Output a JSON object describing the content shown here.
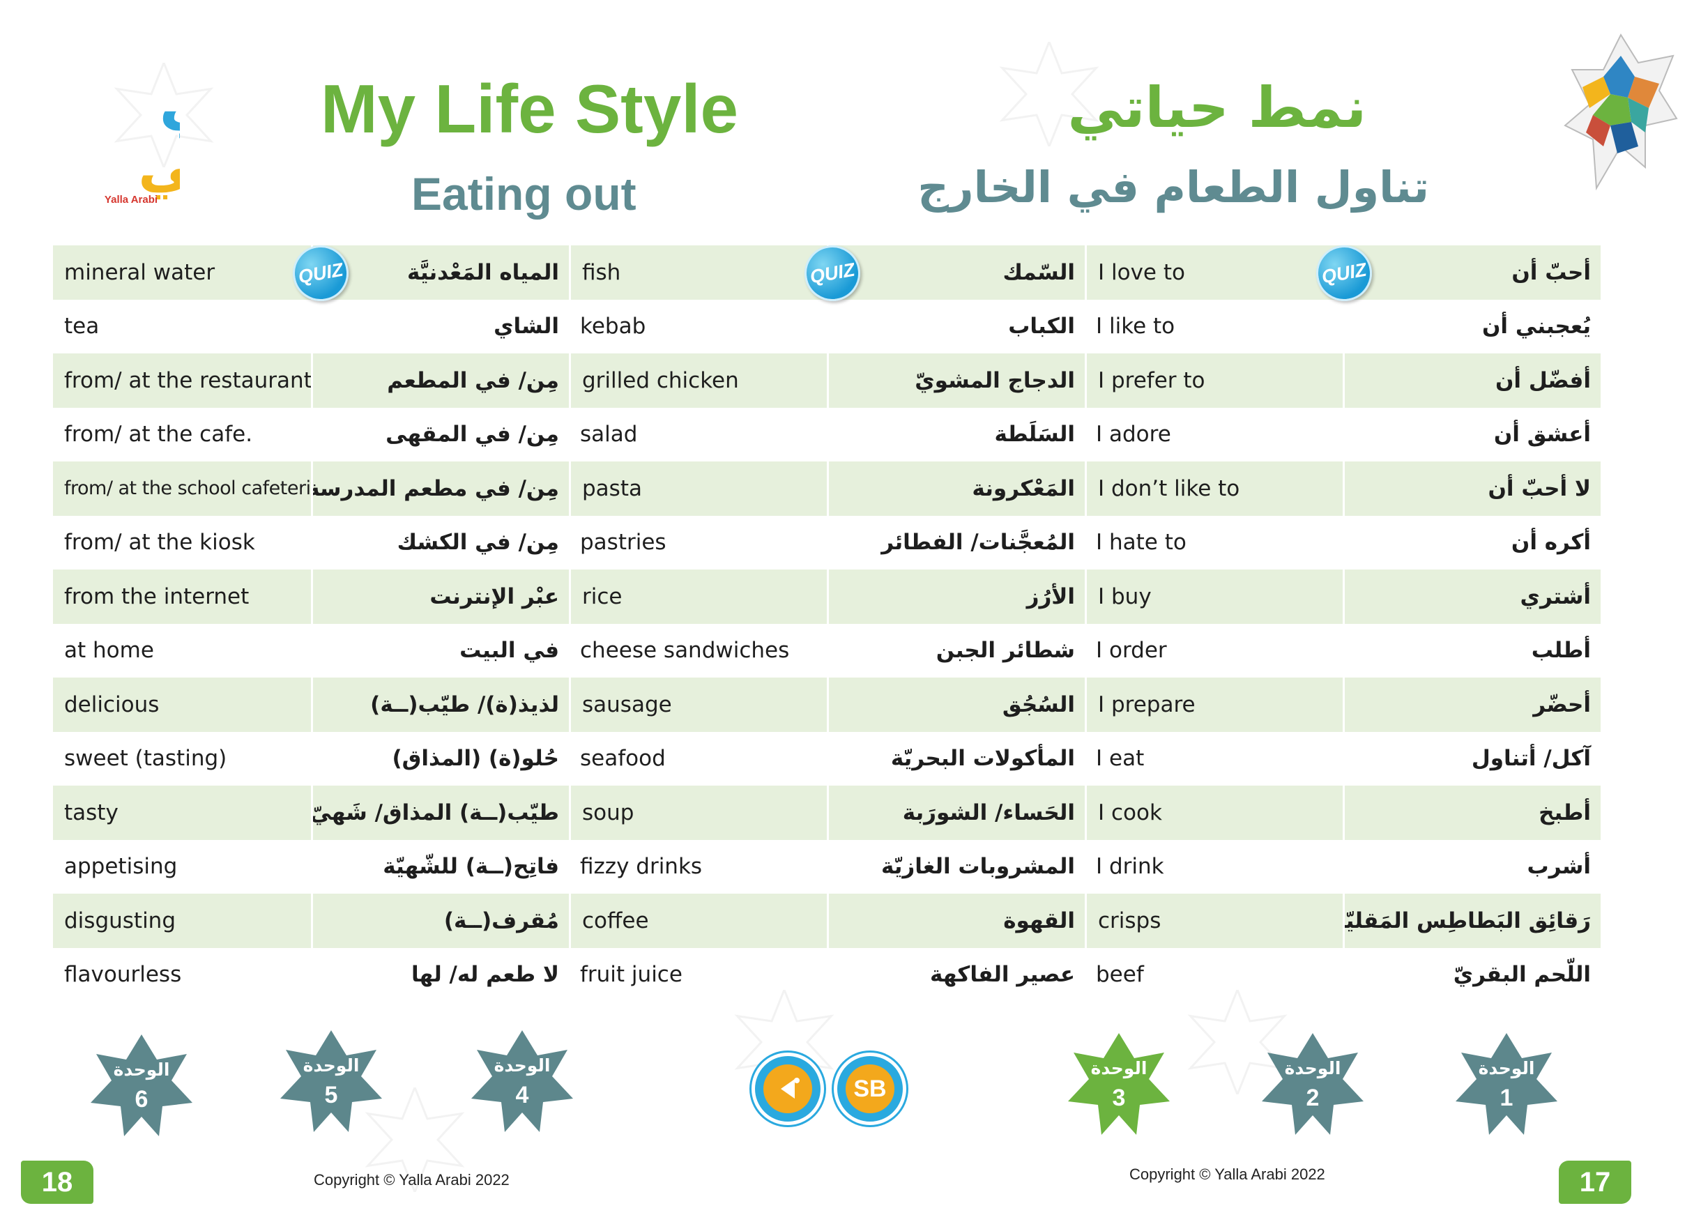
{
  "logo": {
    "name_ar": "يلا عربي",
    "name_en": "Yalla Arabi"
  },
  "title": {
    "en": "My Life Style",
    "ar": "نمط حياتي"
  },
  "subtitle": {
    "en": "Eating out",
    "ar": "تناول الطعام في الخارج"
  },
  "quiz_label": "QUIZ",
  "rows": [
    {
      "en1": "mineral water",
      "ar1": "المياه المَعْدنيَّة",
      "en2": "fish",
      "ar2": "السّمك",
      "en3": "I love to",
      "ar3": "أحبّ أن"
    },
    {
      "en1": "tea",
      "ar1": "الشاي",
      "en2": "kebab",
      "ar2": "الكباب",
      "en3": "I like to",
      "ar3": "يُعجبني أن"
    },
    {
      "en1": "from/ at the restaurant",
      "ar1": "مِن/ في المطعم",
      "en2": "grilled chicken",
      "ar2": "الدجاج المشويّ",
      "en3": "I prefer to",
      "ar3": "أفضّل أن"
    },
    {
      "en1": "from/ at the cafe.",
      "ar1": "مِن/ في المقهى",
      "en2": "salad",
      "ar2": "السَلَطة",
      "en3": "I adore",
      "ar3": "أعشق أن"
    },
    {
      "en1": "from/ at the school cafeteria",
      "ar1": "مِن/ في مطعم المدرسة",
      "en2": "pasta",
      "ar2": "المَعْكرونة",
      "en3": "I don’t like to",
      "ar3": "لا أحبّ أن"
    },
    {
      "en1": "from/ at the kiosk",
      "ar1": "مِن/ في الكشك",
      "en2": "pastries",
      "ar2": "المُعجَّنات/ الفطائر",
      "en3": "I hate to",
      "ar3": "أكره أن"
    },
    {
      "en1": "from the internet",
      "ar1": "عبْر الإنترنت",
      "en2": "rice",
      "ar2": "الأرُز",
      "en3": "I buy",
      "ar3": "أشتري"
    },
    {
      "en1": "at home",
      "ar1": "في البيت",
      "en2": "cheese sandwiches",
      "ar2": "شطائر الجبن",
      "en3": "I order",
      "ar3": "أطلب"
    },
    {
      "en1": "delicious",
      "ar1": "لذيذ(ة)/ طيّب(ــة)",
      "en2": "sausage",
      "ar2": "السُجُق",
      "en3": "I prepare",
      "ar3": "أحضّر"
    },
    {
      "en1": "sweet (tasting)",
      "ar1": "حُلو(ة) (المذاق)",
      "en2": "seafood",
      "ar2": "المأكولات البحريّة",
      "en3": "I eat",
      "ar3": "آكل/ أتناول"
    },
    {
      "en1": "tasty",
      "ar1": "طيّب(ــة) المذاق/ شَهيّ(ــة)",
      "en2": "soup",
      "ar2": "الحَساء/ الشورَبة",
      "en3": "I cook",
      "ar3": "أطبخ"
    },
    {
      "en1": "appetising",
      "ar1": "فاتِح(ــة) للشّهيّة",
      "en2": "fizzy drinks",
      "ar2": "المشروبات الغازيّة",
      "en3": "I drink",
      "ar3": "أشرب"
    },
    {
      "en1": "disgusting",
      "ar1": "مُقرف(ــة)",
      "en2": "coffee",
      "ar2": "القهوة",
      "en3": "crisps",
      "ar3": "رَقائِق البَطاطِس المَقليّة"
    },
    {
      "en1": "flavourless",
      "ar1": "لا طعم له/ لها",
      "en2": "fruit juice",
      "ar2": "عصير الفاكهة",
      "en3": "beef",
      "ar3": "اللّحم البقريّ"
    }
  ],
  "units": [
    {
      "label": "الوحدة",
      "num": "6"
    },
    {
      "label": "الوحدة",
      "num": "5"
    },
    {
      "label": "الوحدة",
      "num": "4"
    },
    {
      "label": "الوحدة",
      "num": "3"
    },
    {
      "label": "الوحدة",
      "num": "2"
    },
    {
      "label": "الوحدة",
      "num": "1"
    }
  ],
  "media": {
    "sb_label": "SB"
  },
  "footer": {
    "page_left": "18",
    "page_right": "17",
    "copyright_left": "Copyright © Yalla Arabi 2022",
    "copyright_right": "Copyright © Yalla Arabi 2022"
  },
  "colors": {
    "green": "#6cb33f",
    "teal": "#5f8b91",
    "row_alt": "#e6f0dc",
    "unit_star": "#5d878c",
    "unit_star_active": "#6cb33f",
    "quiz_blue": "#1a9ad6"
  }
}
